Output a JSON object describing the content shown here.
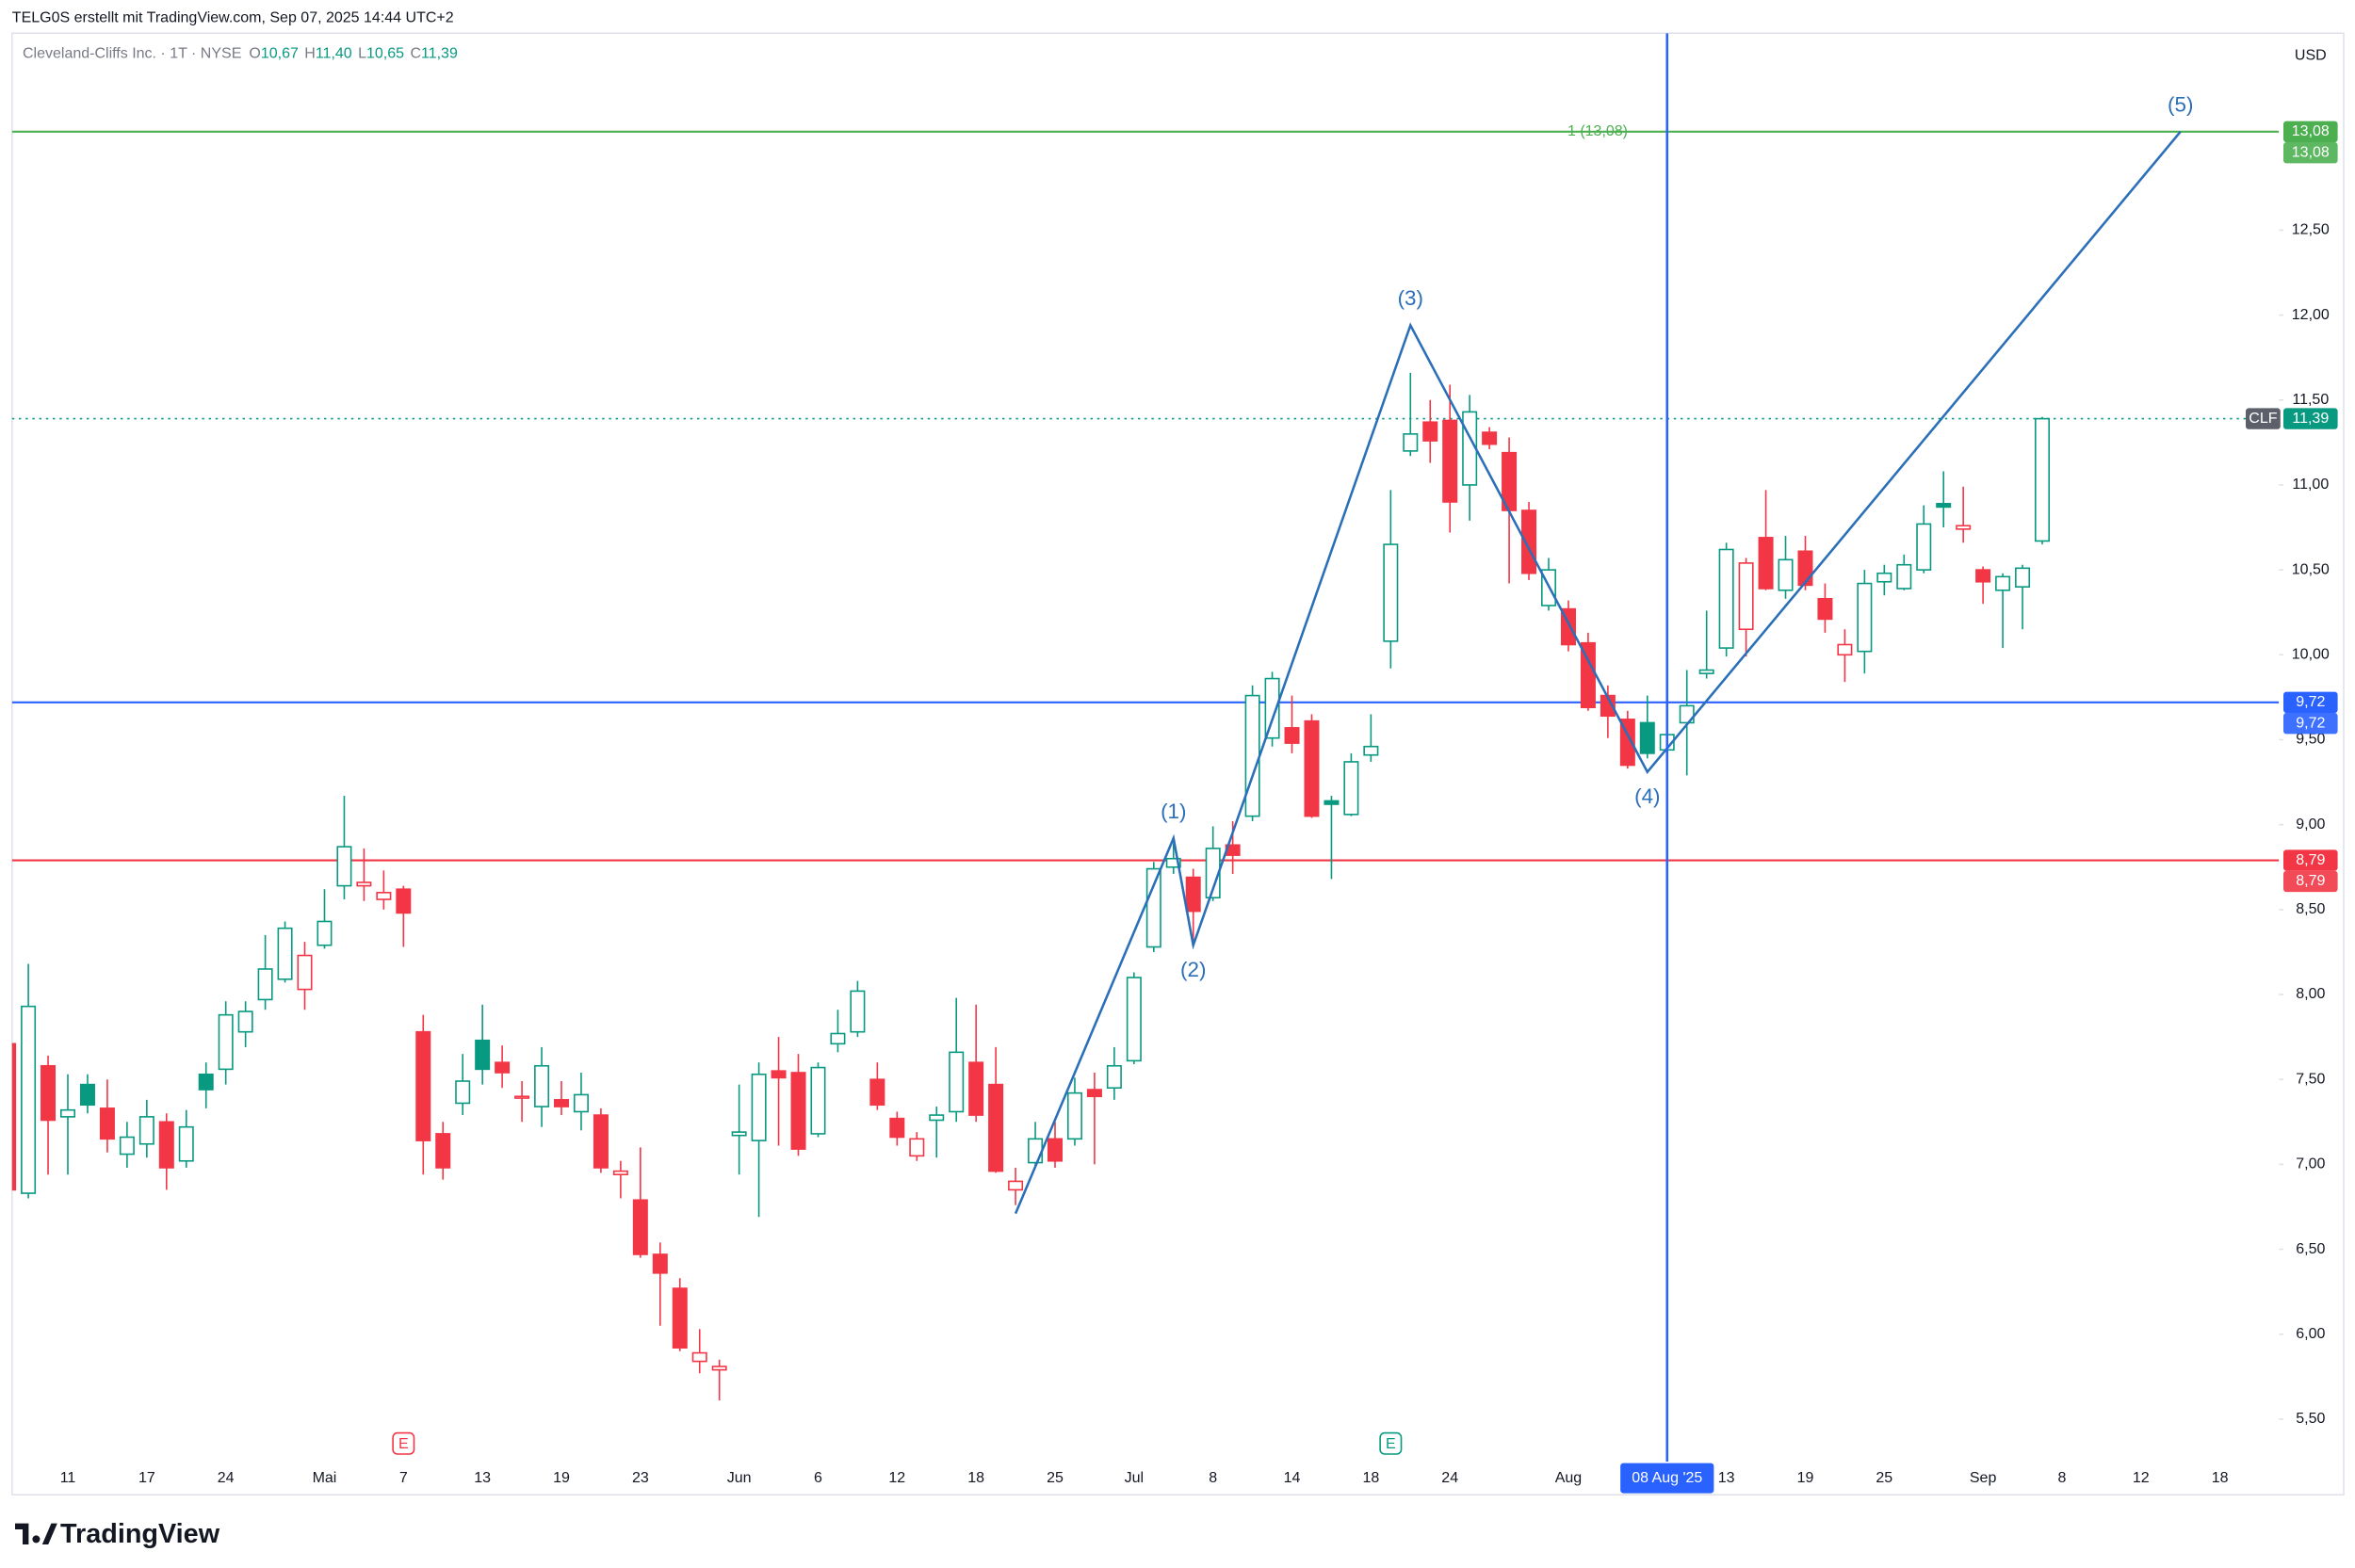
{
  "header": "TELG0S erstellt mit TradingView.com, Sep 07, 2025 14:44 UTC+2",
  "branding": "TradingView",
  "currency": "USD",
  "chart_data": {
    "type": "candlestick",
    "legend": {
      "symbol": "Cleveland-Cliffs Inc. · 1T · NYSE",
      "ohlc": [
        {
          "key": "O",
          "value": 10.67,
          "label": "10,67"
        },
        {
          "key": "H",
          "value": 11.4,
          "label": "11,40"
        },
        {
          "key": "L",
          "value": 10.65,
          "label": "10,65"
        },
        {
          "key": "C",
          "value": 11.39,
          "label": "11,39"
        }
      ]
    },
    "up_color": "#089981",
    "down_color": "#f23645",
    "categories": [
      null,
      null,
      null,
      "11",
      null,
      null,
      null,
      "17",
      null,
      null,
      null,
      "24",
      null,
      null,
      null,
      null,
      "Mai",
      null,
      null,
      null,
      "7",
      null,
      null,
      null,
      "13",
      null,
      null,
      null,
      "19",
      null,
      null,
      null,
      "23",
      null,
      null,
      null,
      null,
      "Jun",
      null,
      null,
      null,
      "6",
      null,
      null,
      null,
      "12",
      null,
      null,
      null,
      "18",
      null,
      null,
      null,
      "25",
      null,
      null,
      null,
      "Jul",
      null,
      null,
      null,
      "8",
      null,
      null,
      null,
      "14",
      null,
      null,
      null,
      "18",
      null,
      null,
      null,
      "24",
      null,
      null,
      null,
      null,
      null,
      "Aug",
      null,
      null,
      null,
      null,
      null,
      null,
      null,
      "13",
      null,
      null,
      null,
      "19",
      null,
      null,
      null,
      "25",
      null,
      null,
      null,
      null,
      "Sep",
      null,
      null,
      null,
      "8",
      null,
      null,
      null,
      "12",
      null,
      null,
      null,
      "18",
      null,
      null
    ],
    "open": [
      7.71,
      6.83,
      7.58,
      7.28,
      7.47,
      7.33,
      7.06,
      7.12,
      7.25,
      7.02,
      7.53,
      7.56,
      7.78,
      7.97,
      8.09,
      8.03,
      8.29,
      8.64,
      8.64,
      8.56,
      8.62,
      7.78,
      7.18,
      7.36,
      7.73,
      7.6,
      7.39,
      7.34,
      7.38,
      7.31,
      7.29,
      6.94,
      6.79,
      6.47,
      6.27,
      5.84,
      5.79,
      7.17,
      7.14,
      7.55,
      7.54,
      7.18,
      7.71,
      7.78,
      7.5,
      7.27,
      7.05,
      7.26,
      7.31,
      7.6,
      7.47,
      6.85,
      7.01,
      7.15,
      7.15,
      7.44,
      7.45,
      7.61,
      8.28,
      8.75,
      8.69,
      8.57,
      8.88,
      9.05,
      9.51,
      9.57,
      9.61,
      9.14,
      9.06,
      9.41,
      10.08,
      11.2,
      11.37,
      11.38,
      11.0,
      11.31,
      11.19,
      10.85,
      10.29,
      10.27,
      10.07,
      9.76,
      9.62,
      9.6,
      9.44,
      9.6,
      9.89,
      10.04,
      10.15,
      10.69,
      10.38,
      10.61,
      10.33,
      10.0,
      10.02,
      10.43,
      10.39,
      10.5,
      10.89,
      10.74,
      10.5,
      10.38,
      10.4,
      10.67,
      null,
      null,
      null,
      null,
      null,
      null,
      null,
      null,
      null,
      null,
      null
    ],
    "high": [
      7.8,
      8.18,
      7.64,
      7.53,
      7.53,
      7.5,
      7.25,
      7.38,
      7.3,
      7.32,
      7.6,
      7.96,
      7.96,
      8.35,
      8.43,
      8.31,
      8.62,
      9.17,
      8.86,
      8.73,
      8.64,
      7.88,
      7.25,
      7.65,
      7.94,
      7.7,
      7.49,
      7.69,
      7.49,
      7.54,
      7.33,
      7.02,
      7.1,
      6.54,
      6.33,
      6.03,
      5.85,
      7.47,
      7.6,
      7.75,
      7.65,
      7.6,
      7.91,
      8.08,
      7.6,
      7.31,
      7.19,
      7.34,
      7.98,
      7.94,
      7.69,
      6.98,
      7.25,
      7.25,
      7.51,
      7.54,
      7.69,
      8.13,
      8.78,
      8.89,
      8.74,
      8.99,
      9.02,
      9.82,
      9.9,
      9.76,
      9.65,
      9.17,
      9.42,
      9.65,
      10.97,
      11.66,
      11.5,
      11.59,
      11.53,
      11.34,
      11.28,
      10.9,
      10.57,
      10.32,
      10.13,
      9.82,
      9.67,
      9.76,
      9.64,
      9.91,
      10.26,
      10.66,
      10.57,
      10.97,
      10.7,
      10.7,
      10.42,
      10.15,
      10.5,
      10.53,
      10.59,
      10.88,
      11.08,
      10.99,
      10.52,
      10.48,
      10.53,
      11.4,
      null,
      null,
      null,
      null,
      null,
      null,
      null,
      null,
      null,
      null,
      null
    ],
    "low": [
      6.85,
      6.8,
      6.94,
      6.94,
      7.3,
      7.07,
      6.98,
      7.04,
      6.85,
      6.98,
      7.33,
      7.47,
      7.69,
      7.91,
      8.07,
      7.91,
      8.27,
      8.56,
      8.55,
      8.5,
      8.28,
      6.94,
      6.91,
      7.29,
      7.47,
      7.45,
      7.25,
      7.22,
      7.29,
      7.2,
      6.95,
      6.8,
      6.45,
      6.05,
      5.9,
      5.77,
      5.61,
      6.94,
      6.69,
      7.11,
      7.05,
      7.16,
      7.66,
      7.75,
      7.32,
      7.11,
      7.02,
      7.04,
      7.25,
      7.25,
      6.95,
      6.76,
      6.98,
      6.98,
      7.11,
      7.0,
      7.38,
      7.59,
      8.25,
      8.71,
      8.31,
      8.55,
      8.71,
      9.02,
      9.46,
      9.42,
      9.04,
      8.68,
      9.05,
      9.37,
      9.92,
      11.17,
      11.13,
      10.72,
      10.79,
      11.21,
      10.42,
      10.44,
      10.26,
      10.02,
      9.67,
      9.51,
      9.33,
      9.39,
      9.4,
      9.29,
      9.86,
      9.99,
      9.99,
      10.38,
      10.33,
      10.38,
      10.13,
      9.84,
      9.89,
      10.35,
      10.38,
      10.48,
      10.75,
      10.66,
      10.3,
      10.04,
      10.15,
      10.65,
      null,
      null,
      null,
      null,
      null,
      null,
      null,
      null,
      null,
      null,
      null
    ],
    "close": [
      6.85,
      7.93,
      7.26,
      7.32,
      7.35,
      7.15,
      7.16,
      7.28,
      6.98,
      7.22,
      7.44,
      7.88,
      7.9,
      8.15,
      8.39,
      8.23,
      8.43,
      8.87,
      8.66,
      8.6,
      8.48,
      7.14,
      6.98,
      7.49,
      7.56,
      7.54,
      7.4,
      7.58,
      7.34,
      7.41,
      6.98,
      6.96,
      6.47,
      6.36,
      5.92,
      5.89,
      5.81,
      7.19,
      7.53,
      7.51,
      7.09,
      7.57,
      7.77,
      8.02,
      7.35,
      7.16,
      7.15,
      7.29,
      7.66,
      7.29,
      6.96,
      6.9,
      7.15,
      7.02,
      7.42,
      7.4,
      7.58,
      8.1,
      8.74,
      8.8,
      8.49,
      8.86,
      8.82,
      9.76,
      9.86,
      9.48,
      9.05,
      9.12,
      9.37,
      9.46,
      10.65,
      11.3,
      11.26,
      10.9,
      11.43,
      11.24,
      10.85,
      10.48,
      10.5,
      10.06,
      9.69,
      9.64,
      9.35,
      9.42,
      9.53,
      9.7,
      9.91,
      10.62,
      10.54,
      10.39,
      10.56,
      10.41,
      10.21,
      10.06,
      10.42,
      10.48,
      10.53,
      10.77,
      10.87,
      10.76,
      10.43,
      10.46,
      10.51,
      11.39,
      null,
      null,
      null,
      null,
      null,
      null,
      null,
      null,
      null,
      null,
      null
    ],
    "ylim": [
      5.25,
      13.66
    ],
    "yticks": [
      {
        "value": 5.5,
        "label": "5,50"
      },
      {
        "value": 6.0,
        "label": "6,00"
      },
      {
        "value": 6.5,
        "label": "6,50"
      },
      {
        "value": 7.0,
        "label": "7,00"
      },
      {
        "value": 7.5,
        "label": "7,50"
      },
      {
        "value": 8.0,
        "label": "8,00"
      },
      {
        "value": 8.5,
        "label": "8,50"
      },
      {
        "value": 9.0,
        "label": "9,00"
      },
      {
        "value": 9.5,
        "label": "9,50"
      },
      {
        "value": 10.0,
        "label": "10,00"
      },
      {
        "value": 10.5,
        "label": "10,50"
      },
      {
        "value": 11.0,
        "label": "11,00"
      },
      {
        "value": 11.5,
        "label": "11,50"
      },
      {
        "value": 12.0,
        "label": "12,00"
      },
      {
        "value": 12.5,
        "label": "12,50"
      }
    ],
    "grid": false,
    "levels": [
      {
        "value": 13.08,
        "label": "13,08",
        "color": "#4caf50",
        "note": "1 (13,08)"
      },
      {
        "value": 9.72,
        "label": "9,72",
        "color": "#2962ff"
      },
      {
        "value": 8.79,
        "label": "8,79",
        "color": "#f23645"
      }
    ],
    "last": {
      "symbol": "CLF",
      "value": 11.39,
      "label": "11,39",
      "color": "#089981"
    },
    "waves": {
      "color": "#2a6fb8",
      "points": [
        {
          "index": 51,
          "value": 6.71
        },
        {
          "index": 59,
          "value": 8.92,
          "label": "(1)"
        },
        {
          "index": 60,
          "value": 8.29,
          "label": "(2)"
        },
        {
          "index": 71,
          "value": 11.94,
          "label": "(3)"
        },
        {
          "index": 83,
          "value": 9.31,
          "label": "(4)"
        },
        {
          "index": 110,
          "value": 13.08,
          "label": "(5)"
        }
      ]
    },
    "crosshair": {
      "index": 84,
      "label": "08 Aug '25"
    },
    "earnings": [
      {
        "index": 20,
        "label": "E",
        "color": "#f23645"
      },
      {
        "index": 70,
        "label": "E",
        "color": "#089981"
      }
    ]
  }
}
